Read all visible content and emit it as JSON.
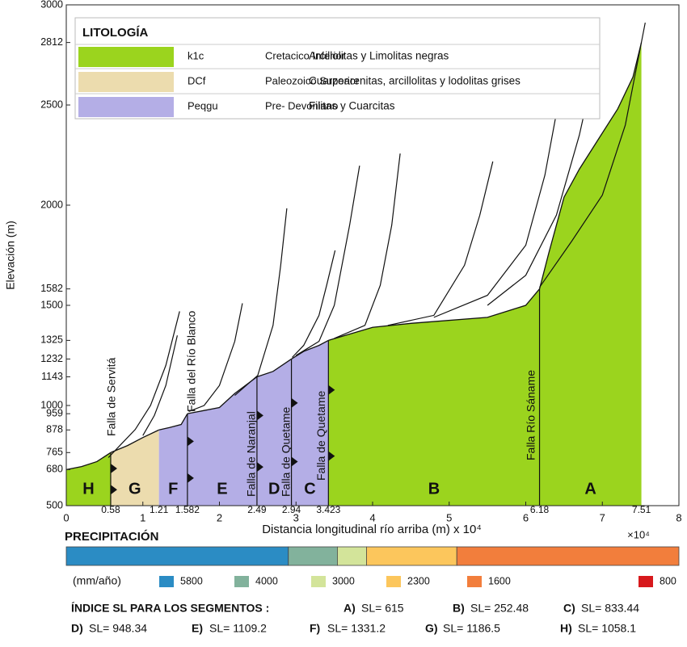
{
  "chart_data": {
    "type": "profile",
    "xlabel": "Distancia longitudinal río arriba (m) x 10⁴",
    "x_multiplier": "×10⁴",
    "ylabel": "Elevación (m)",
    "xlim": [
      0,
      8
    ],
    "ylim": [
      500,
      3000
    ],
    "xticks": [
      0,
      1,
      2,
      3,
      4,
      5,
      6,
      7,
      8
    ],
    "boundary_ticks": [
      0.58,
      1.21,
      1.582,
      2.49,
      2.94,
      3.423,
      6.18,
      7.51
    ],
    "yticks": [
      500,
      680,
      765,
      878,
      959,
      1000,
      1143,
      1232,
      1325,
      1500,
      1582,
      2000,
      2500,
      2812,
      3000
    ],
    "legend": {
      "title": "LITOLOGÍA",
      "items": [
        {
          "code": "k1c",
          "age": "Cretacico Inferior",
          "description": "Arcillolitas y Limolitas negras",
          "color": "#9bd41e"
        },
        {
          "code": "DCf",
          "age": "Paleozoico Superior",
          "description": "Cuarzoarenitas, arcillolitas y lodolitas grises",
          "color": "#ecdcae"
        },
        {
          "code": "Peqgu",
          "age": "Pre- Devoniano",
          "description": "Filitas y Cuarcitas",
          "color": "#b4aee6"
        }
      ]
    },
    "segments": [
      {
        "name": "H",
        "color": "#9bd41e",
        "x": [
          0,
          0.2,
          0.4,
          0.58
        ],
        "y": [
          680,
          695,
          720,
          765
        ]
      },
      {
        "name": "G",
        "color": "#ecdcae",
        "x": [
          0.58,
          0.8,
          1.0,
          1.21
        ],
        "y": [
          765,
          800,
          840,
          878
        ]
      },
      {
        "name": "F",
        "color": "#b4aee6",
        "x": [
          1.21,
          1.35,
          1.5,
          1.582
        ],
        "y": [
          878,
          890,
          905,
          959
        ]
      },
      {
        "name": "E",
        "color": "#b4aee6",
        "x": [
          1.582,
          1.8,
          2.0,
          2.2,
          2.49
        ],
        "y": [
          959,
          975,
          990,
          1060,
          1143
        ]
      },
      {
        "name": "D",
        "color": "#b4aee6",
        "x": [
          2.49,
          2.7,
          2.94
        ],
        "y": [
          1143,
          1170,
          1232
        ]
      },
      {
        "name": "C",
        "color": "#b4aee6",
        "x": [
          2.94,
          3.1,
          3.3,
          3.423
        ],
        "y": [
          1232,
          1270,
          1300,
          1325
        ]
      },
      {
        "name": "B",
        "color": "#9bd41e",
        "x": [
          3.423,
          4.0,
          4.5,
          5.5,
          6.0,
          6.18
        ],
        "y": [
          1325,
          1390,
          1410,
          1440,
          1500,
          1582
        ]
      },
      {
        "name": "A",
        "color": "#9bd41e",
        "x": [
          6.18,
          6.3,
          6.5,
          6.7,
          6.95,
          7.2,
          7.4,
          7.51
        ],
        "y": [
          1582,
          1760,
          2040,
          2180,
          2330,
          2480,
          2640,
          2812
        ]
      }
    ],
    "tributaries": [
      {
        "x": [
          0.55,
          0.7,
          0.9,
          1.1,
          1.3,
          1.48
        ],
        "y": [
          740,
          800,
          880,
          1000,
          1200,
          1470
        ]
      },
      {
        "x": [
          1.0,
          1.15,
          1.3,
          1.45
        ],
        "y": [
          850,
          950,
          1100,
          1350
        ]
      },
      {
        "x": [
          1.6,
          1.8,
          2.0,
          2.2,
          2.3
        ],
        "y": [
          970,
          1000,
          1100,
          1320,
          1510
        ]
      },
      {
        "x": [
          2.2,
          2.5,
          2.7,
          2.8,
          2.88
        ],
        "y": [
          1050,
          1150,
          1400,
          1700,
          1984
        ]
      },
      {
        "x": [
          2.95,
          3.1,
          3.3,
          3.4,
          3.51
        ],
        "y": [
          1240,
          1300,
          1450,
          1600,
          1774
        ]
      },
      {
        "x": [
          3.0,
          3.3,
          3.5,
          3.7,
          3.83
        ],
        "y": [
          1250,
          1320,
          1500,
          1900,
          2197
        ]
      },
      {
        "x": [
          3.5,
          3.9,
          4.1,
          4.25,
          4.36
        ],
        "y": [
          1335,
          1400,
          1600,
          1900,
          2258
        ]
      },
      {
        "x": [
          4.2,
          4.8,
          5.2,
          5.4,
          5.57
        ],
        "y": [
          1400,
          1450,
          1700,
          1950,
          2218
        ]
      },
      {
        "x": [
          4.8,
          5.5,
          6.0,
          6.25,
          6.42
        ],
        "y": [
          1440,
          1550,
          1800,
          2150,
          2500
        ]
      },
      {
        "x": [
          5.5,
          6.0,
          6.4,
          6.7,
          6.94
        ],
        "y": [
          1500,
          1650,
          1950,
          2350,
          2762
        ]
      },
      {
        "x": [
          6.18,
          6.6,
          7.0,
          7.3,
          7.56
        ],
        "y": [
          1590,
          1820,
          2050,
          2400,
          2911
        ]
      }
    ],
    "faults": [
      {
        "name": "Falla de Servitá",
        "x": 0.58
      },
      {
        "name": "Falla del Río Blanco",
        "x": 1.582
      },
      {
        "name": "Falla de Naranjal",
        "x": 2.49
      },
      {
        "name": "Falla de Quetame",
        "x": 2.94
      },
      {
        "name": "Falla de Quetame",
        "x": 3.423
      },
      {
        "name": "Falla Río Sáname",
        "x": 6.18
      }
    ],
    "precipitation": {
      "title": "PRECIPITACIÓN",
      "unit": "(mm/año)",
      "segments": [
        {
          "from": 0,
          "to": 2.9,
          "color": "#2b8cc4"
        },
        {
          "from": 2.9,
          "to": 3.54,
          "color": "#82b29c"
        },
        {
          "from": 3.54,
          "to": 3.92,
          "color": "#d3e49a"
        },
        {
          "from": 3.92,
          "to": 5.1,
          "color": "#fcc65c"
        },
        {
          "from": 5.1,
          "to": 8,
          "color": "#f27e3c"
        }
      ],
      "legend": [
        {
          "label": 5800,
          "color": "#2b8cc4"
        },
        {
          "label": 4000,
          "color": "#82b29c"
        },
        {
          "label": 3000,
          "color": "#d3e49a"
        },
        {
          "label": 2300,
          "color": "#fcc65c"
        },
        {
          "label": 1600,
          "color": "#f27e3c"
        },
        {
          "label": 800,
          "color": "#d7191c"
        }
      ]
    },
    "sl_index": {
      "title": "ÍNDICE SL PARA LOS SEGMENTOS :",
      "items": [
        {
          "label": "A)",
          "text": "SL= 615"
        },
        {
          "label": "B)",
          "text": "SL= 252.48"
        },
        {
          "label": "C)",
          "text": "SL= 833.44"
        },
        {
          "label": "D)",
          "text": "SL= 948.34"
        },
        {
          "label": "E)",
          "text": "SL= 1109.2"
        },
        {
          "label": "F)",
          "text": "SL= 1331.2"
        },
        {
          "label": "G)",
          "text": "SL= 1186.5"
        },
        {
          "label": "H)",
          "text": "SL= 1058.1"
        }
      ]
    }
  }
}
